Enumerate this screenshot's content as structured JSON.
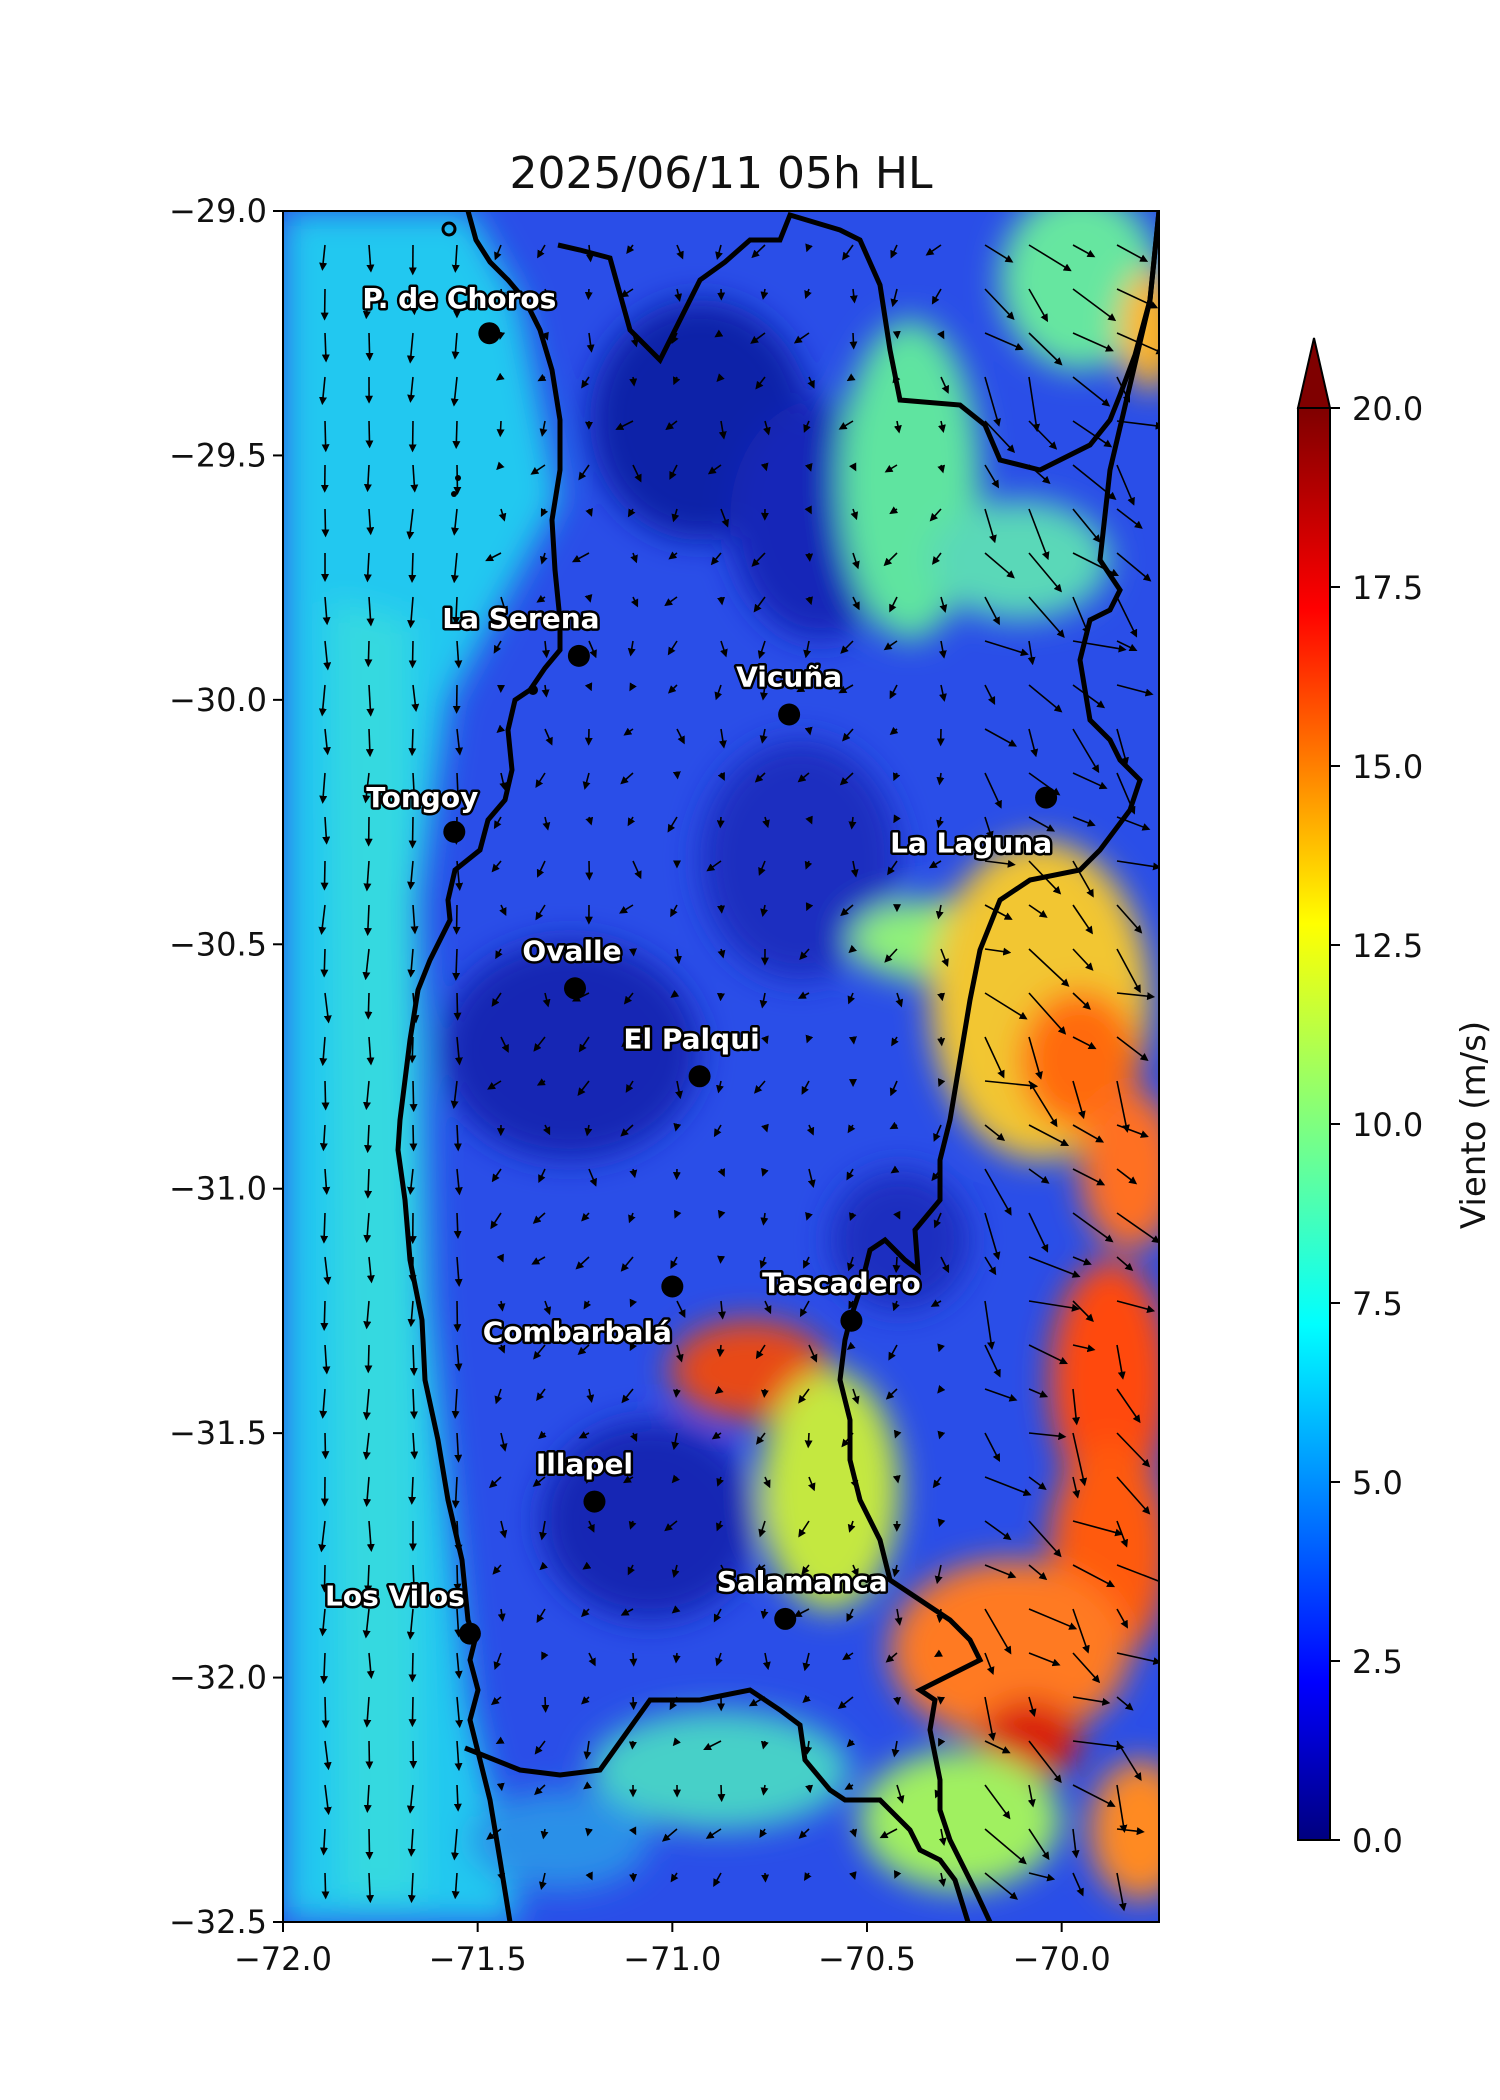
{
  "title": "2025/06/11 05h HL",
  "map": {
    "lon_range": [
      -72.0,
      -69.75
    ],
    "lat_range": [
      -32.5,
      -29.0
    ],
    "x_ticks": [
      {
        "value": -72.0,
        "label": "−72.0"
      },
      {
        "value": -71.5,
        "label": "−71.5"
      },
      {
        "value": -71.0,
        "label": "−71.0"
      },
      {
        "value": -70.5,
        "label": "−70.5"
      },
      {
        "value": -70.0,
        "label": "−70.0"
      }
    ],
    "y_ticks": [
      {
        "value": -29.0,
        "label": "−29.0"
      },
      {
        "value": -29.5,
        "label": "−29.5"
      },
      {
        "value": -30.0,
        "label": "−30.0"
      },
      {
        "value": -30.5,
        "label": "−30.5"
      },
      {
        "value": -31.0,
        "label": "−31.0"
      },
      {
        "value": -31.5,
        "label": "−31.5"
      },
      {
        "value": -32.0,
        "label": "−32.0"
      },
      {
        "value": -32.5,
        "label": "−32.5"
      }
    ],
    "cities": [
      {
        "name": "P. de Choros",
        "lon": -71.47,
        "lat": -29.25
      },
      {
        "name": "La Serena",
        "lon": -71.24,
        "lat": -29.91
      },
      {
        "name": "Vicuña",
        "lon": -70.7,
        "lat": -30.03
      },
      {
        "name": "Tongoy",
        "lon": -71.56,
        "lat": -30.27
      },
      {
        "name": "La Laguna",
        "lon": -70.04,
        "lat": -30.2
      },
      {
        "name": "Ovalle",
        "lon": -71.25,
        "lat": -30.59
      },
      {
        "name": "El Palqui",
        "lon": -70.93,
        "lat": -30.77
      },
      {
        "name": "Combarbalá",
        "lon": -71.0,
        "lat": -31.2
      },
      {
        "name": "Tascadero",
        "lon": -70.54,
        "lat": -31.27
      },
      {
        "name": "Illapel",
        "lon": -71.2,
        "lat": -31.64
      },
      {
        "name": "Los Vilos",
        "lon": -71.52,
        "lat": -31.91
      },
      {
        "name": "Salamanca",
        "lon": -70.71,
        "lat": -31.88
      }
    ]
  },
  "colorbar": {
    "label": "Viento (m/s)",
    "min": 0.0,
    "max": 20.0,
    "extend": "max",
    "colormap": "jet",
    "ticks": [
      {
        "value": 0.0,
        "label": "0.0"
      },
      {
        "value": 2.5,
        "label": "2.5"
      },
      {
        "value": 5.0,
        "label": "5.0"
      },
      {
        "value": 7.5,
        "label": "7.5"
      },
      {
        "value": 10.0,
        "label": "10.0"
      },
      {
        "value": 12.5,
        "label": "12.5"
      },
      {
        "value": 15.0,
        "label": "15.0"
      },
      {
        "value": 17.5,
        "label": "17.5"
      },
      {
        "value": 20.0,
        "label": "20.0"
      }
    ],
    "colors": [
      "#00007f",
      "#0000ff",
      "#007fff",
      "#00ffff",
      "#7fff7f",
      "#ffff00",
      "#ff7f00",
      "#ff0000",
      "#7f0000"
    ]
  }
}
